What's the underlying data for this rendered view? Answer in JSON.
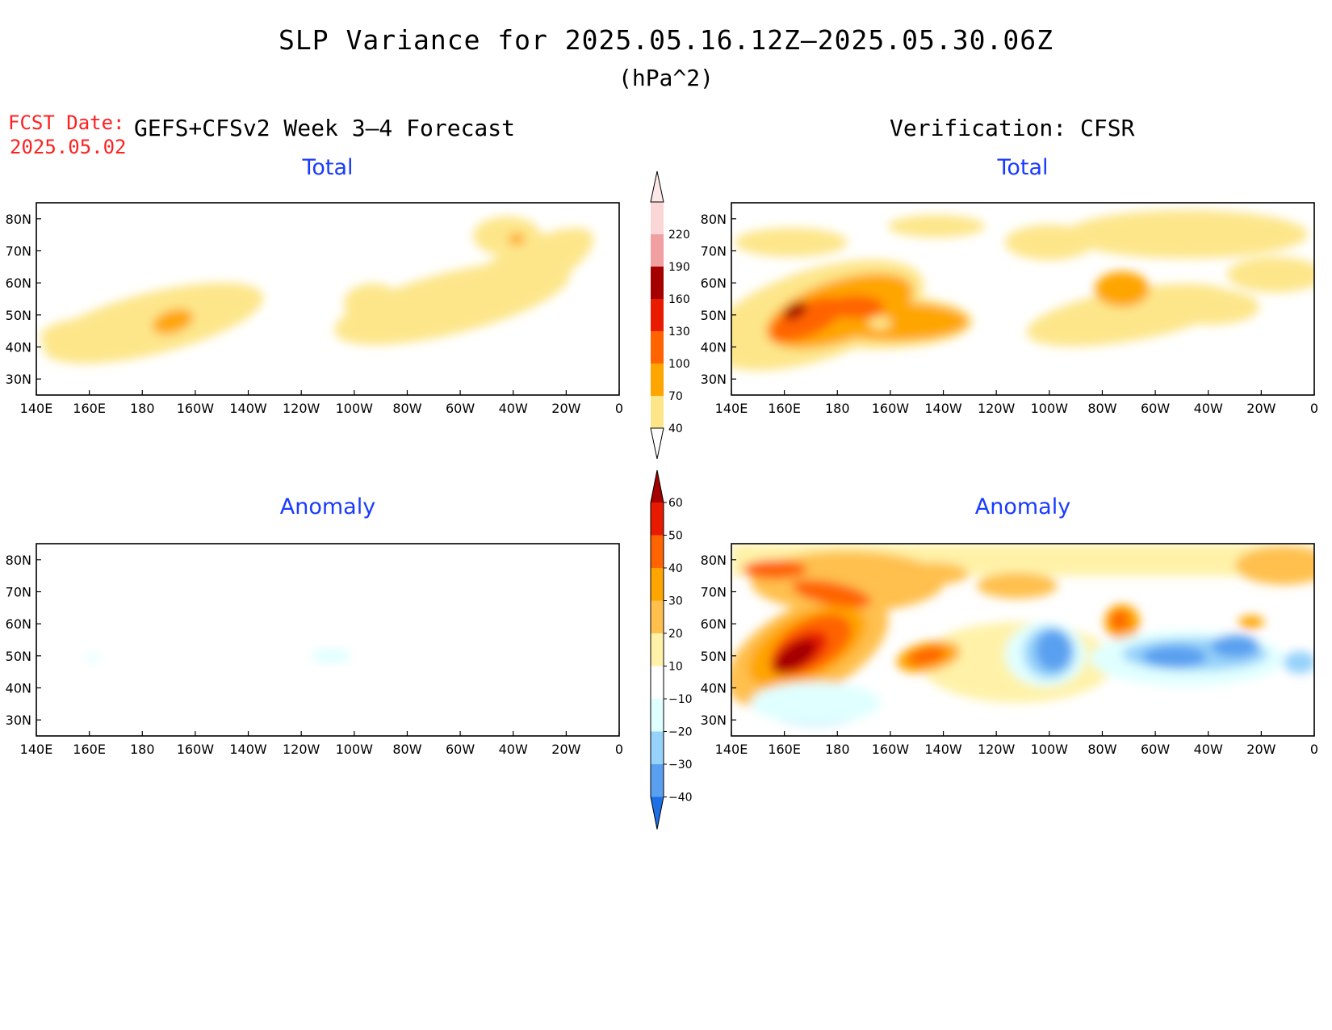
{
  "header": {
    "title": "SLP Variance for 2025.05.16.12Z–2025.05.30.06Z",
    "units": "(hPa^2)",
    "fcst_date_label": "FCST Date:",
    "fcst_date": "2025.05.02",
    "left_heading": "GEFS+CFSv2 Week 3–4 Forecast",
    "right_heading": "Verification: CFSR"
  },
  "panels": [
    {
      "id": "fcst-total",
      "title": "Total"
    },
    {
      "id": "cfsr-total",
      "title": "Total"
    },
    {
      "id": "fcst-anomaly",
      "title": "Anomaly"
    },
    {
      "id": "cfsr-anomaly",
      "title": "Anomaly"
    }
  ],
  "axes": {
    "lon_labels": [
      "140E",
      "160E",
      "180",
      "160W",
      "140W",
      "120W",
      "100W",
      "80W",
      "60W",
      "40W",
      "20W",
      "0"
    ],
    "lat_labels": [
      "80N",
      "70N",
      "60N",
      "50N",
      "40N",
      "30N"
    ],
    "lon_range_deg_east": [
      140,
      360
    ],
    "lat_range": [
      25,
      85
    ]
  },
  "colorbars": {
    "total": {
      "levels": [
        "40",
        "70",
        "100",
        "130",
        "160",
        "190",
        "220"
      ],
      "colors": [
        "#fde68a",
        "#ffa500",
        "#ff6400",
        "#e81a00",
        "#a50000",
        "#f0a0a0",
        "#fbd6d6"
      ]
    },
    "anomaly": {
      "levels": [
        "60",
        "50",
        "40",
        "30",
        "20",
        "10",
        "−10",
        "−20",
        "−30",
        "−40"
      ],
      "colors_top_down": [
        "#a50000",
        "#e81a00",
        "#ff6400",
        "#ffa500",
        "#ffc04d",
        "#fff2a8",
        "#ffffff",
        "#e0ffff",
        "#96d2fa",
        "#5aa0f0",
        "#1e6ee6"
      ]
    }
  },
  "chart_data": [
    {
      "type": "heatmap",
      "title": "Total",
      "units": "hPa^2",
      "features": [
        {
          "lon": 180,
          "lat": 47,
          "level": "40-70",
          "extent_lon": 65,
          "extent_lat": 13
        },
        {
          "lon": 187,
          "lat": 47,
          "level": "70-100"
        },
        {
          "lon": 290,
          "lat": 55,
          "level": "40-70",
          "extent_lon": 100,
          "extent_lat": 18
        },
        {
          "lon": 320,
          "lat": 74,
          "level": "70-100"
        }
      ]
    },
    {
      "type": "heatmap",
      "title": "Total",
      "units": "hPa^2",
      "features": [
        {
          "lon": 175,
          "lat": 49,
          "level": "100-160"
        },
        {
          "lon": 162,
          "lat": 50,
          "level": "160-190"
        },
        {
          "lon": 205,
          "lat": 47,
          "level": "70-100"
        },
        {
          "lon": 290,
          "lat": 58,
          "level": "70-100"
        }
      ]
    },
    {
      "type": "heatmap",
      "title": "Anomaly",
      "units": "hPa^2",
      "features": [
        {
          "lon": 255,
          "lat": 48,
          "level": "-10--20"
        }
      ]
    },
    {
      "type": "heatmap",
      "title": "Anomaly",
      "units": "hPa^2",
      "features": [
        {
          "lon": 165,
          "lat": 50,
          "level": ">60"
        },
        {
          "lon": 210,
          "lat": 50,
          "level": "30-40"
        },
        {
          "lon": 258,
          "lat": 53,
          "level": "-30--40"
        },
        {
          "lon": 300,
          "lat": 52,
          "level": "-30--40"
        },
        {
          "lon": 335,
          "lat": 56,
          "level": "-30--40"
        },
        {
          "lon": 290,
          "lat": 62,
          "level": "30-40"
        },
        {
          "lon": 165,
          "lat": 33,
          "level": "-20--30"
        }
      ]
    }
  ]
}
